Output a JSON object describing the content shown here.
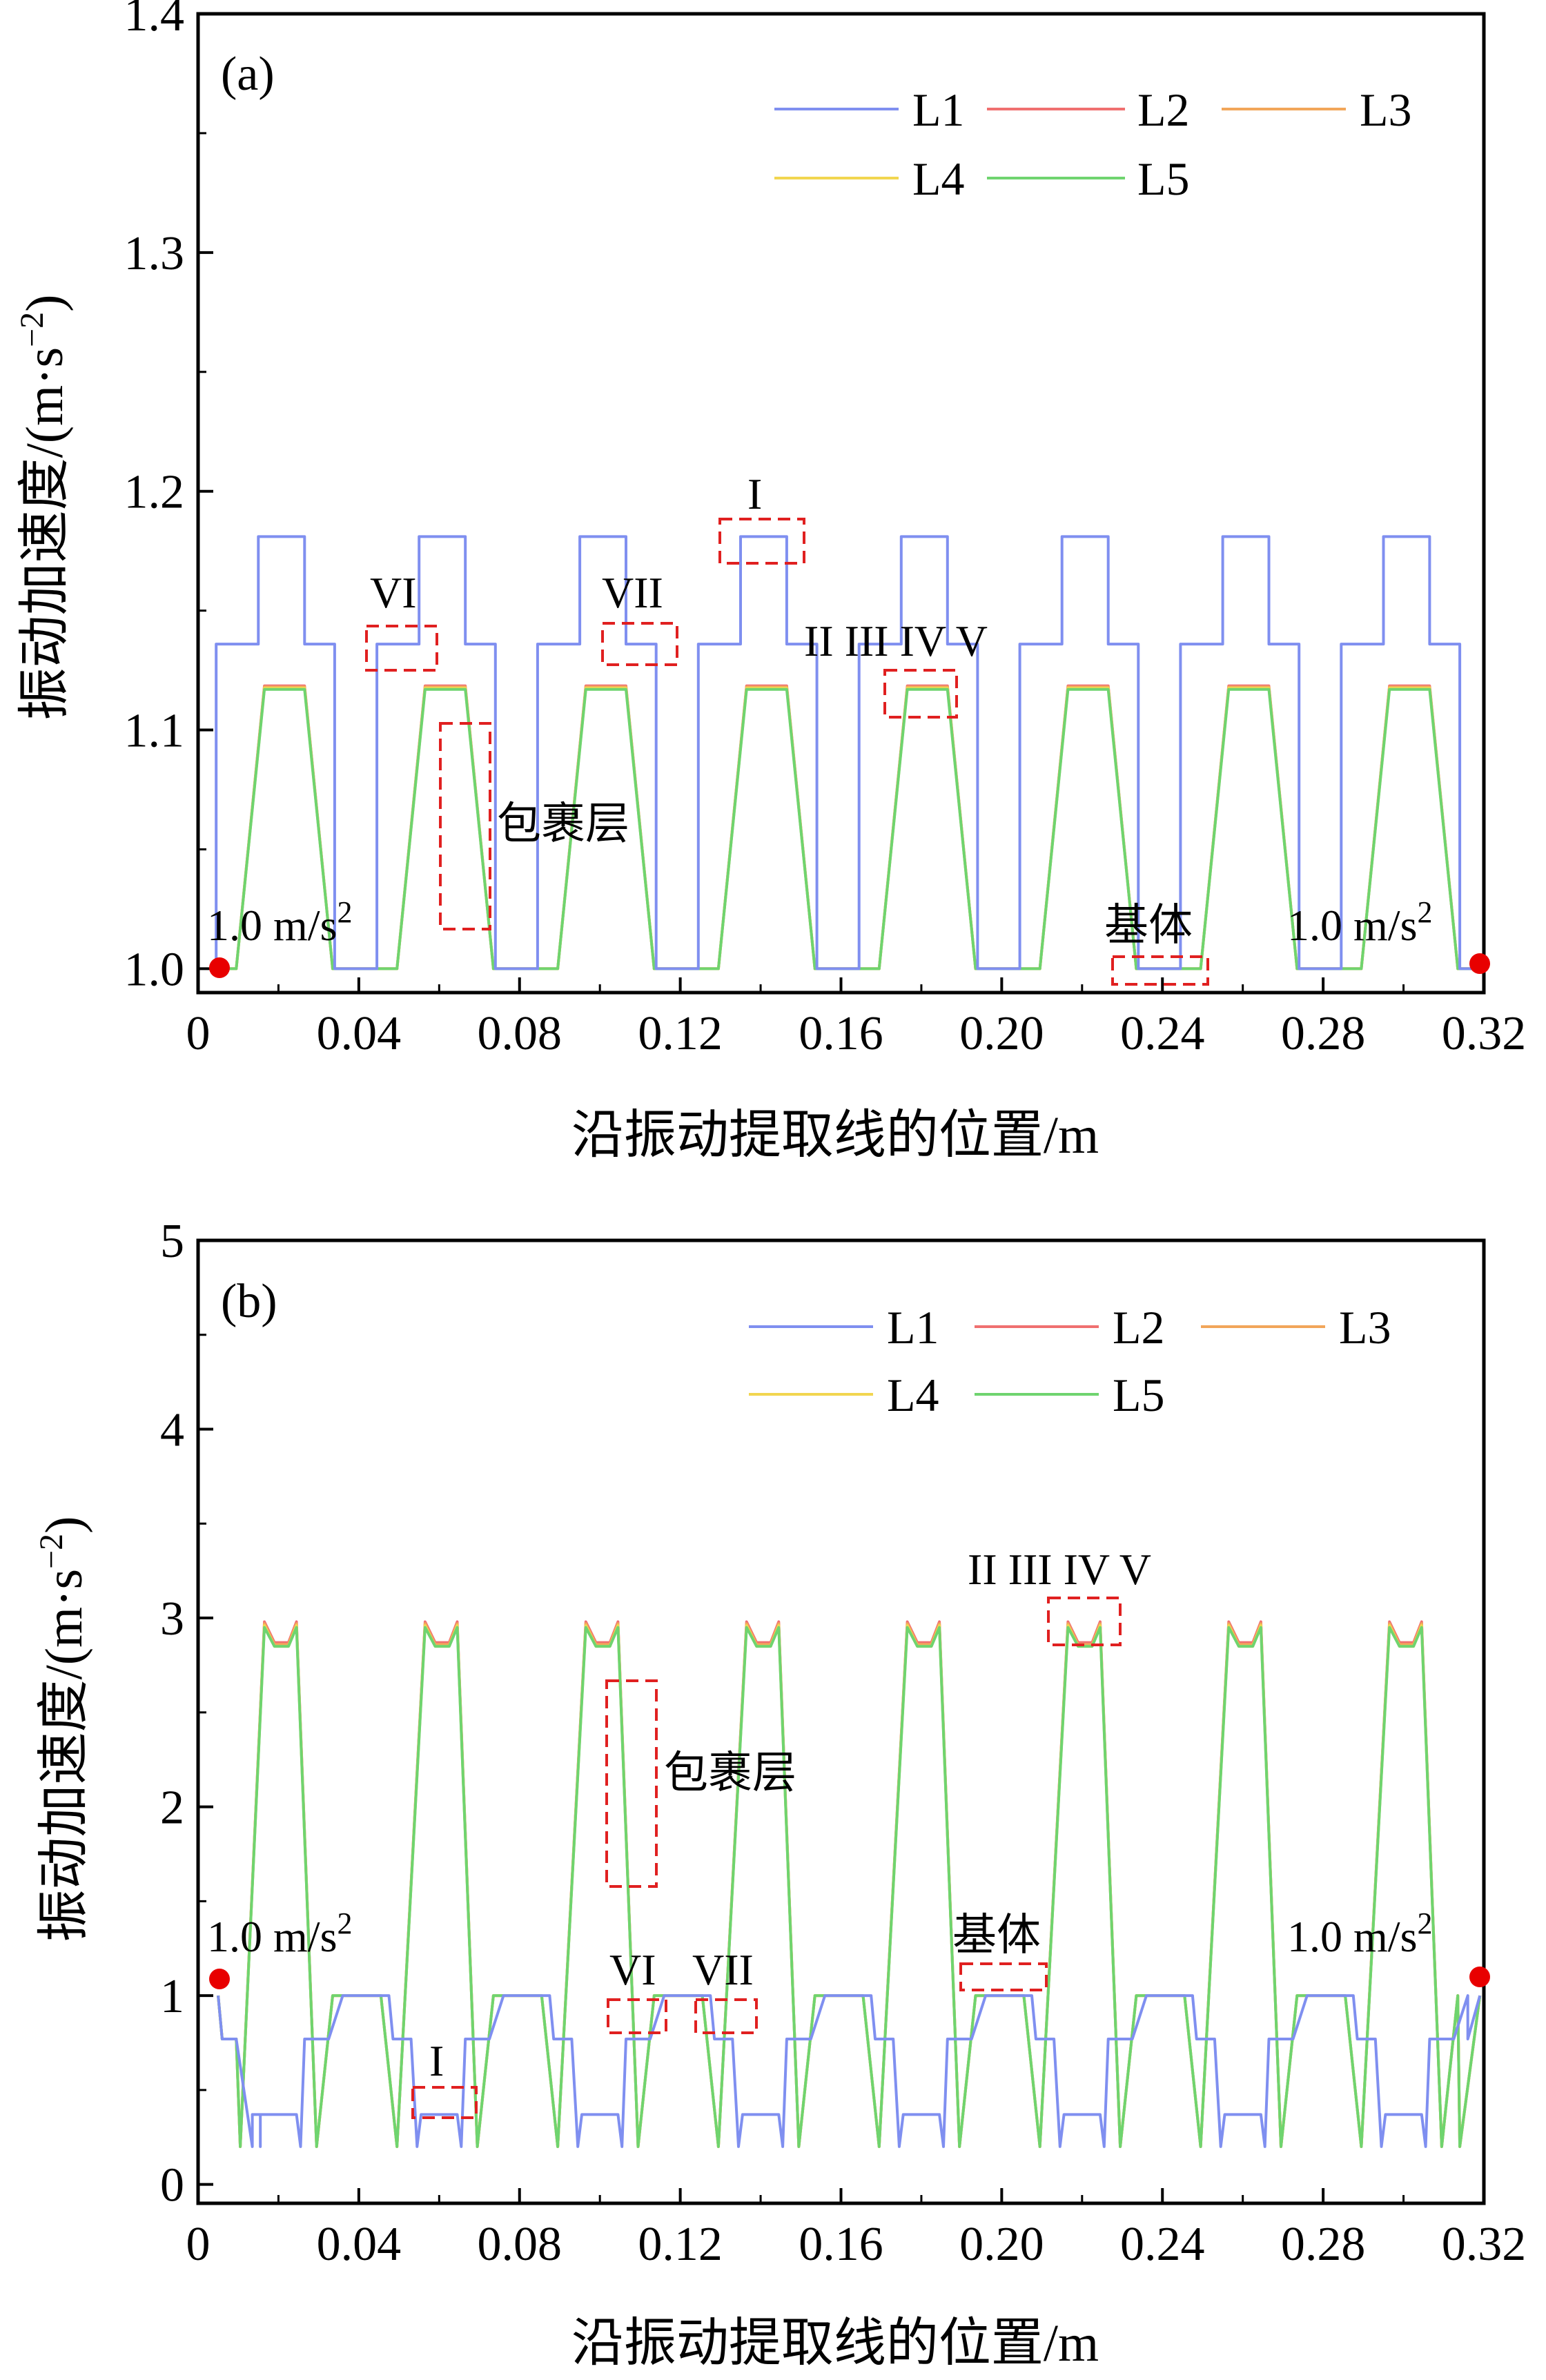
{
  "figure": {
    "panels": [
      {
        "id": "a",
        "panel_label": "(a)",
        "ylabel": "振动加速度/(m·s",
        "ylabel_sup": "−2",
        "ylabel_close": ")",
        "xlabel": "沿振动提取线的位置/m",
        "start_marker": "1.0 m/s",
        "end_marker": "1.0 m/s",
        "marker_sup": "2",
        "annotations": {
          "roman_1": "I",
          "roman_group": "II III IV V",
          "roman_6": "VI",
          "roman_7": "VII",
          "coating": "包裹层",
          "substrate": "基体"
        }
      },
      {
        "id": "b",
        "panel_label": "(b)",
        "ylabel": "振动加速度/(m·s",
        "ylabel_sup": "−2",
        "ylabel_close": ")",
        "xlabel": "沿振动提取线的位置/m",
        "start_marker": "1.0 m/s",
        "end_marker": "1.0 m/s",
        "marker_sup": "2",
        "annotations": {
          "roman_1": "I",
          "roman_group": "II III IV V",
          "roman_6": "VI",
          "roman_7": "VII",
          "coating": "包裹层",
          "substrate": "基体"
        }
      }
    ]
  },
  "chart_data": [
    {
      "type": "line",
      "panel": "(a)",
      "xlabel": "沿振动提取线的位置/m",
      "ylabel": "振动加速度/(m·s−2)",
      "xlim": [
        0,
        0.32
      ],
      "ylim": [
        0.99,
        1.4
      ],
      "xticks": [
        "0",
        "0.04",
        "0.08",
        "0.12",
        "0.16",
        "0.20",
        "0.24",
        "0.28",
        "0.32"
      ],
      "yticks": [
        "1.0",
        "1.1",
        "1.2",
        "1.3",
        "1.4"
      ],
      "legend": [
        "L1",
        "L2",
        "L3",
        "L4",
        "L5"
      ],
      "legend_position": "top-right",
      "series_colors": {
        "L1": "#7f8ff0",
        "L2": "#f07070",
        "L3": "#f2a65a",
        "L4": "#f2d650",
        "L5": "#6fd46f"
      },
      "cells": 8,
      "cell_pitch": 0.04,
      "L1_levels": {
        "boundary": 1.0,
        "shoulder": 1.136,
        "peak": 1.181
      },
      "L2_L5_levels": {
        "boundary": 1.0,
        "peak": 1.117
      },
      "endpoints": [
        {
          "x": 0.005,
          "y": 1.0
        },
        {
          "x": 0.319,
          "y": 1.0
        }
      ]
    },
    {
      "type": "line",
      "panel": "(b)",
      "xlabel": "沿振动提取线的位置/m",
      "ylabel": "振动加速度/(m·s−2)",
      "xlim": [
        0,
        0.32
      ],
      "ylim": [
        -0.1,
        5
      ],
      "xticks": [
        "0",
        "0.04",
        "0.08",
        "0.12",
        "0.16",
        "0.20",
        "0.24",
        "0.28",
        "0.32"
      ],
      "yticks": [
        "0",
        "1",
        "2",
        "3",
        "4",
        "5"
      ],
      "legend": [
        "L1",
        "L2",
        "L3",
        "L4",
        "L5"
      ],
      "legend_position": "top-right",
      "series_colors": {
        "L1": "#7f8ff0",
        "L2": "#f07070",
        "L3": "#f2a65a",
        "L4": "#f2d650",
        "L5": "#6fd46f"
      },
      "cells": 8,
      "cell_pitch": 0.04,
      "L1_levels": {
        "boundary": 1.0,
        "shoulder": 0.77,
        "valley": 0.37,
        "min": 0.2
      },
      "L2_L5_levels": {
        "boundary": 1.0,
        "shoulder": 0.77,
        "peak": 2.95,
        "dip": 2.85,
        "min": 0.2
      },
      "endpoints": [
        {
          "x": 0.005,
          "y": 1.0
        },
        {
          "x": 0.319,
          "y": 1.0
        }
      ]
    }
  ]
}
